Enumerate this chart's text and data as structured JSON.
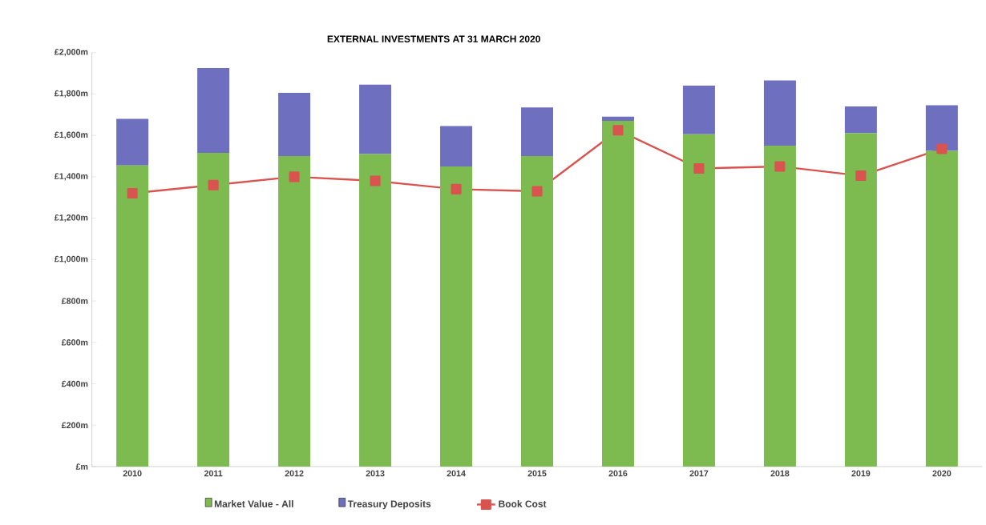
{
  "chart_data": {
    "type": "bar",
    "title": "EXTERNAL INVESTMENTS AT 31 MARCH 2020",
    "categories": [
      "2010",
      "2011",
      "2012",
      "2013",
      "2014",
      "2015",
      "2016",
      "2017",
      "2018",
      "2019",
      "2020"
    ],
    "stacked": true,
    "series": [
      {
        "name": "Market Value - All",
        "color": "#7dba50",
        "values": [
          1455,
          1515,
          1500,
          1510,
          1450,
          1500,
          1670,
          1605,
          1550,
          1610,
          1525
        ]
      },
      {
        "name": "Treasury Deposits",
        "color": "#6f6fbf",
        "values": [
          225,
          410,
          305,
          335,
          195,
          235,
          20,
          235,
          315,
          130,
          220
        ]
      },
      {
        "name": "Book Cost",
        "type": "line",
        "color": "#d9534f",
        "marker": "square",
        "values": [
          1320,
          1360,
          1400,
          1380,
          1340,
          1330,
          1625,
          1440,
          1450,
          1405,
          1535
        ]
      }
    ],
    "ylim": [
      0,
      2000
    ],
    "yticks": [
      {
        "value": 0,
        "label": "£m"
      },
      {
        "value": 200,
        "label": "£200m"
      },
      {
        "value": 400,
        "label": "£400m"
      },
      {
        "value": 600,
        "label": "£600m"
      },
      {
        "value": 800,
        "label": "£800m"
      },
      {
        "value": 1000,
        "label": "£1,000m"
      },
      {
        "value": 1200,
        "label": "£1,200m"
      },
      {
        "value": 1400,
        "label": "£1,400m"
      },
      {
        "value": 1600,
        "label": "£1,600m"
      },
      {
        "value": 1800,
        "label": "£1,800m"
      },
      {
        "value": 2000,
        "label": "£2,000m"
      }
    ],
    "legend": "bottom"
  }
}
